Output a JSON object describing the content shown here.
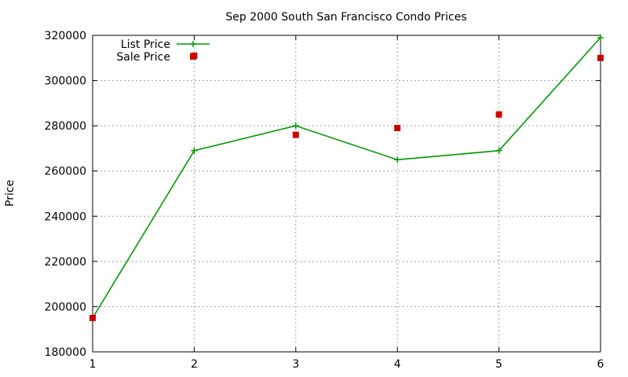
{
  "chart_data": {
    "type": "line",
    "title": "Sep 2000 South San Francisco Condo Prices",
    "xlabel": "",
    "ylabel": "Price",
    "xlim": [
      1,
      6
    ],
    "ylim": [
      180000,
      320000
    ],
    "xticks": [
      1,
      2,
      3,
      4,
      5,
      6
    ],
    "yticks": [
      180000,
      200000,
      220000,
      240000,
      260000,
      280000,
      300000,
      320000
    ],
    "grid": true,
    "legend_position": "top-left",
    "series": [
      {
        "name": "List Price",
        "style": "line-with-plus-markers",
        "color": "#009900",
        "x": [
          1,
          2,
          3,
          4,
          5,
          6
        ],
        "values": [
          195000,
          269000,
          280000,
          265000,
          269000,
          319000
        ]
      },
      {
        "name": "Sale Price",
        "style": "square-markers",
        "color": "#cc0000",
        "x": [
          1,
          2,
          3,
          4,
          5,
          6
        ],
        "values": [
          195000,
          311000,
          276000,
          279000,
          285000,
          310000
        ]
      }
    ]
  }
}
